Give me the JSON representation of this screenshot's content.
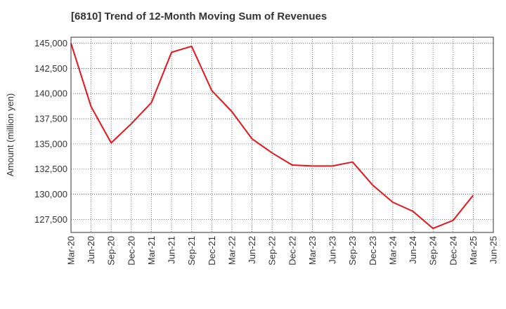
{
  "chart_data": {
    "type": "line",
    "title": "[6810]  Trend of 12-Month Moving Sum of Revenues",
    "xlabel": "",
    "ylabel": "Amount (million yen)",
    "x_ticks": [
      "Mar-20",
      "Jun-20",
      "Sep-20",
      "Dec-20",
      "Mar-21",
      "Jun-21",
      "Sep-21",
      "Dec-21",
      "Mar-22",
      "Jun-22",
      "Sep-22",
      "Dec-22",
      "Mar-23",
      "Jun-23",
      "Sep-23",
      "Dec-23",
      "Mar-24",
      "Jun-24",
      "Sep-24",
      "Dec-24",
      "Mar-25",
      "Jun-25"
    ],
    "y_ticks": [
      127500,
      130000,
      132500,
      135000,
      137500,
      140000,
      142500,
      145000
    ],
    "ylim": [
      126200,
      145600
    ],
    "grid": true,
    "series": [
      {
        "color": "#e8141b",
        "x": [
          "Mar-20",
          "Jun-20",
          "Sep-20",
          "Dec-20",
          "Mar-21",
          "Jun-21",
          "Sep-21",
          "Dec-21",
          "Mar-22",
          "Jun-22",
          "Sep-22",
          "Dec-22",
          "Mar-23",
          "Jun-23",
          "Sep-23",
          "Dec-23",
          "Mar-24",
          "Jun-24",
          "Sep-24",
          "Dec-24",
          "Mar-25"
        ],
        "values": [
          145000,
          138700,
          135100,
          137000,
          139100,
          144100,
          144700,
          140300,
          138200,
          135500,
          134100,
          132900,
          132800,
          132800,
          133200,
          130900,
          129200,
          128300,
          126600,
          127400,
          129900
        ]
      }
    ]
  }
}
